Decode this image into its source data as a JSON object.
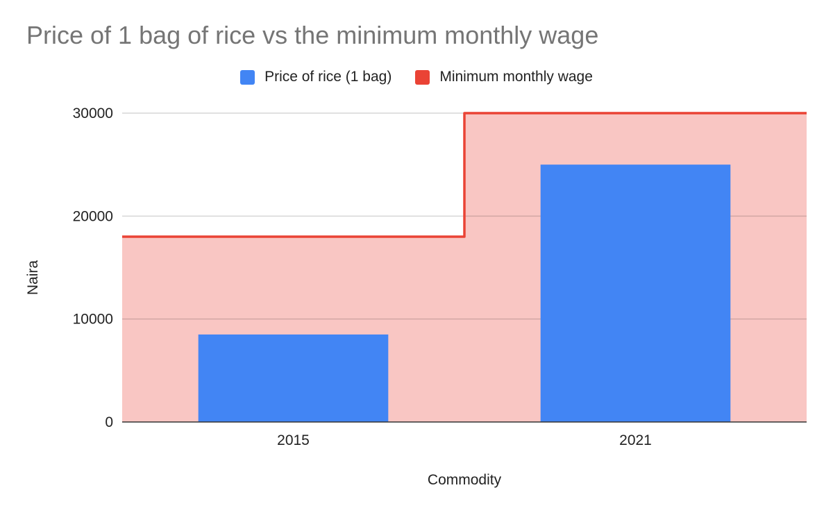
{
  "chart_data": {
    "type": "bar",
    "title": "Price of 1 bag of rice vs the minimum monthly wage",
    "xlabel": "Commodity",
    "ylabel": "Naira",
    "categories": [
      "2015",
      "2021"
    ],
    "ylim": [
      0,
      30000
    ],
    "yticks": [
      0,
      10000,
      20000,
      30000
    ],
    "grid": true,
    "legend_position": "top",
    "series": [
      {
        "name": "Price of rice (1 bag)",
        "type": "bar",
        "color": "#4285f4",
        "values": [
          8500,
          25000
        ]
      },
      {
        "name": "Minimum monthly wage",
        "type": "stepped-area",
        "color": "#ea4335",
        "fill": "#f9c6c3",
        "values": [
          18000,
          30000
        ]
      }
    ]
  }
}
